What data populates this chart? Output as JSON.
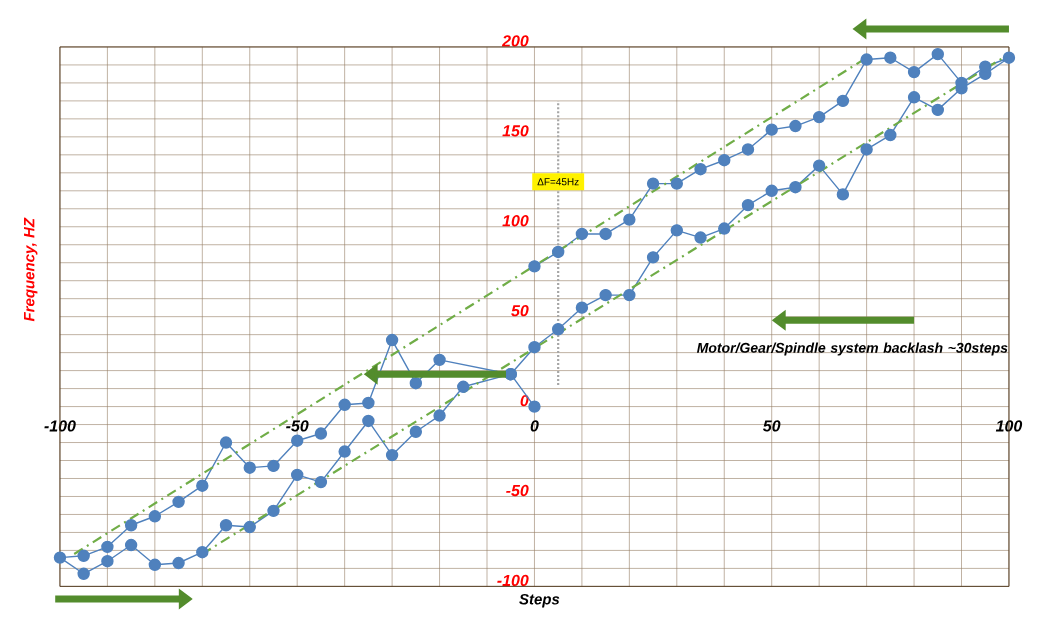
{
  "chart_data": {
    "type": "line",
    "xlabel": "Steps",
    "ylabel": "Frequency, HZ",
    "xlim": [
      -100,
      100
    ],
    "ylim": [
      -100,
      200
    ],
    "xticks": [
      -100,
      {
        "value": -90,
        "label": null
      },
      {
        "value": -80,
        "label": null
      },
      {
        "value": -70,
        "label": null
      },
      {
        "value": -60,
        "label": null
      },
      -50,
      {
        "value": -40,
        "label": null
      },
      {
        "value": -30,
        "label": null
      },
      {
        "value": -20,
        "label": null
      },
      {
        "value": -10,
        "label": null
      },
      0,
      {
        "value": 10,
        "label": null
      },
      {
        "value": 20,
        "label": null
      },
      {
        "value": 30,
        "label": null
      },
      {
        "value": 40,
        "label": null
      },
      50,
      {
        "value": 60,
        "label": null
      },
      {
        "value": 70,
        "label": null
      },
      {
        "value": 80,
        "label": null
      },
      {
        "value": 90,
        "label": null
      },
      100
    ],
    "yticks": [
      -100,
      {
        "value": -90,
        "label": null
      },
      {
        "value": -80,
        "label": null
      },
      {
        "value": -70,
        "label": null
      },
      {
        "value": -60,
        "label": null
      },
      -50,
      {
        "value": -40,
        "label": null
      },
      {
        "value": -30,
        "label": null
      },
      {
        "value": -20,
        "label": null
      },
      {
        "value": -10,
        "label": null
      },
      0,
      {
        "value": 10,
        "label": null
      },
      {
        "value": 20,
        "label": null
      },
      {
        "value": 30,
        "label": null
      },
      {
        "value": 40,
        "label": null
      },
      50,
      {
        "value": 60,
        "label": null
      },
      {
        "value": 70,
        "label": null
      },
      {
        "value": 80,
        "label": null
      },
      {
        "value": 90,
        "label": null
      },
      100,
      {
        "value": 110,
        "label": null
      },
      {
        "value": 120,
        "label": null
      },
      {
        "value": 130,
        "label": null
      },
      {
        "value": 140,
        "label": null
      },
      150,
      {
        "value": 160,
        "label": null
      },
      {
        "value": 170,
        "label": null
      },
      {
        "value": 180,
        "label": null
      },
      {
        "value": 190,
        "label": null
      },
      200
    ],
    "grid": true,
    "series": [
      {
        "color": "#4f81bd",
        "marker": "circle",
        "line_style": "solid",
        "x": [
          0,
          -5,
          -20,
          -25,
          -30,
          -35,
          -40,
          -45,
          -50,
          -55,
          -60,
          -65,
          -70,
          -75,
          -80,
          -85,
          -90,
          -95,
          -100,
          -95,
          -90,
          -85,
          -80,
          -75,
          -70,
          -65,
          -60,
          -55,
          -50,
          -45,
          -40,
          -35,
          -30,
          -25,
          -20,
          -15,
          -5,
          0,
          5,
          10,
          15,
          20,
          25,
          30,
          35,
          40,
          45,
          50,
          55,
          60,
          65,
          70,
          75,
          80,
          85,
          90,
          95,
          100,
          95,
          90,
          85,
          80,
          75,
          70,
          65,
          60,
          55,
          50,
          45,
          40,
          35,
          30,
          25,
          20,
          15,
          10,
          5,
          0
        ],
        "values": [
          0,
          18,
          26,
          13,
          37,
          2,
          1,
          -15,
          -19,
          -33,
          -34,
          -20,
          -44,
          -53,
          -61,
          -66,
          -78,
          -83,
          -84,
          -93,
          -86,
          -77,
          -88,
          -87,
          -81,
          -66,
          -67,
          -58,
          -38,
          -42,
          -25,
          -8,
          -27,
          -14,
          -5,
          11,
          18,
          33,
          43,
          55,
          62,
          62,
          83,
          98,
          94,
          99,
          112,
          120,
          122,
          134,
          118,
          143,
          151,
          172,
          165,
          177,
          185,
          194,
          189,
          180,
          196,
          186,
          194,
          193,
          170,
          161,
          156,
          154,
          143,
          137,
          132,
          124,
          124,
          104,
          96,
          96,
          86,
          78
        ]
      },
      {
        "type": "line",
        "color": "#70ad47",
        "marker": "none",
        "line_style": "dashed",
        "x": [
          -97,
          70
        ],
        "values": [
          -82,
          194
        ]
      },
      {
        "type": "line",
        "color": "#70ad47",
        "marker": "none",
        "line_style": "dashed",
        "x": [
          -70,
          100
        ],
        "values": [
          -82,
          196
        ]
      },
      {
        "type": "line",
        "color": "#a6a6a6",
        "marker": "none",
        "line_style": "dotted",
        "x": [
          5,
          5
        ],
        "values": [
          12,
          170
        ]
      }
    ],
    "annotations": [
      {
        "text": "ΔF=45Hz",
        "x": 5,
        "y": 125
      },
      "Motor/Gear/Spindle system backlash ~30steps"
    ]
  }
}
